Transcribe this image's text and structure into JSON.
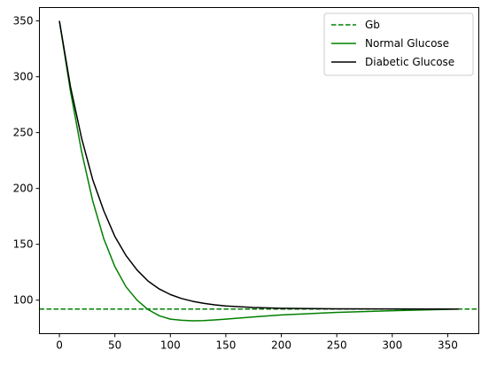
{
  "chart_data": {
    "type": "line",
    "xlim": [
      -18,
      378
    ],
    "ylim": [
      70,
      362
    ],
    "x_ticks": [
      0,
      50,
      100,
      150,
      200,
      250,
      300,
      350
    ],
    "y_ticks": [
      100,
      150,
      200,
      250,
      300,
      350
    ],
    "grid": false,
    "legend_position": "top-right",
    "colors": {
      "green": "#008000",
      "black": "#000000"
    },
    "series": [
      {
        "name": "Gb",
        "style": "dashed",
        "color": "#008000",
        "x": [
          -18,
          378
        ],
        "y": [
          92,
          92
        ]
      },
      {
        "name": "Normal Glucose",
        "style": "solid",
        "color": "#008000",
        "x": [
          0,
          10,
          20,
          30,
          40,
          50,
          60,
          70,
          80,
          90,
          100,
          110,
          120,
          130,
          140,
          150,
          175,
          200,
          250,
          300,
          360
        ],
        "y": [
          350,
          287,
          233,
          189,
          155,
          130,
          112,
          100,
          91.5,
          86,
          83,
          82,
          81.5,
          81.7,
          82.3,
          83,
          85,
          86.8,
          89,
          90.5,
          92
        ]
      },
      {
        "name": "Diabetic Glucose",
        "style": "solid",
        "color": "#000000",
        "x": [
          0,
          10,
          20,
          30,
          40,
          50,
          60,
          70,
          80,
          90,
          100,
          110,
          120,
          130,
          140,
          150,
          175,
          200,
          250,
          300,
          360
        ],
        "y": [
          350,
          291,
          245,
          208,
          180,
          157,
          140,
          127,
          117,
          110,
          105,
          101.5,
          99,
          97.2,
          95.8,
          94.8,
          93.4,
          92.7,
          92.2,
          92.1,
          92
        ]
      }
    ]
  }
}
